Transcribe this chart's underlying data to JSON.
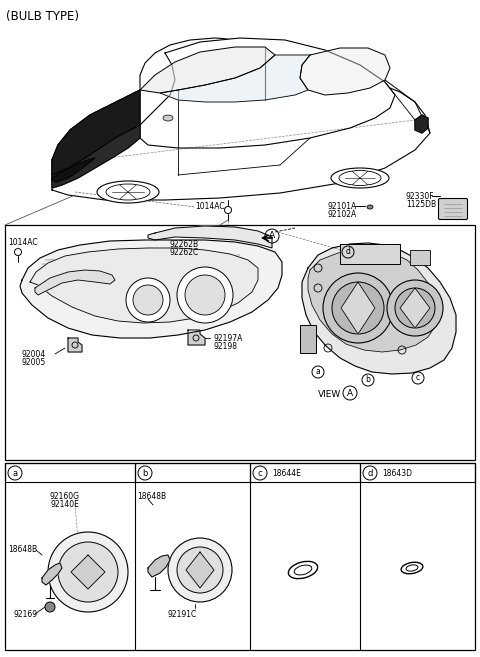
{
  "bg_color": "#ffffff",
  "line_color": "#000000",
  "text_color": "#000000",
  "labels": {
    "bulb_type": "(BULB TYPE)",
    "1014ac_top": "1014AC",
    "92101a": "92101A",
    "92102a": "92102A",
    "92330f": "92330F",
    "1125db": "1125DB",
    "1014ac_left": "1014AC",
    "92262b": "92262B",
    "92262c": "92262C",
    "92004": "92004",
    "92005": "92005",
    "92197a": "92197A",
    "92198": "92198",
    "view_a": "VIEW",
    "18644e": "18644E",
    "18643d": "18643D",
    "92160g": "92160G",
    "92140e": "92140E",
    "18648b_a": "18648B",
    "92169": "92169",
    "18648b_b": "18648B",
    "92191c": "92191C"
  },
  "fs": 5.5,
  "fm": 6.5,
  "fl": 8.5
}
